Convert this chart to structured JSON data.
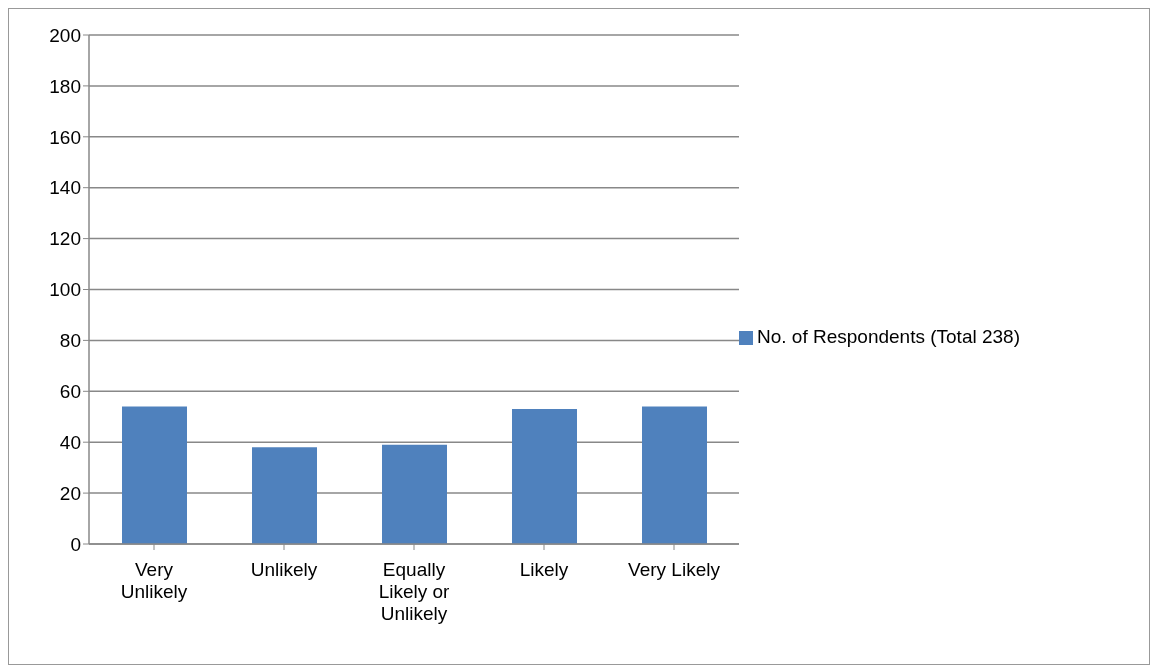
{
  "chart_data": {
    "type": "bar",
    "categories": [
      "Very Unlikely",
      "Unlikely",
      "Equally Likely or Unlikely",
      "Likely",
      "Very Likely"
    ],
    "series": [
      {
        "name": "No. of Respondents (Total 238)",
        "color": "#4f81bd",
        "values": [
          54,
          38,
          39,
          53,
          54
        ]
      }
    ],
    "ylim": [
      0,
      200
    ],
    "yticks": [
      0,
      20,
      40,
      60,
      80,
      100,
      120,
      140,
      160,
      180,
      200
    ],
    "grid": "y",
    "legend": "right"
  }
}
